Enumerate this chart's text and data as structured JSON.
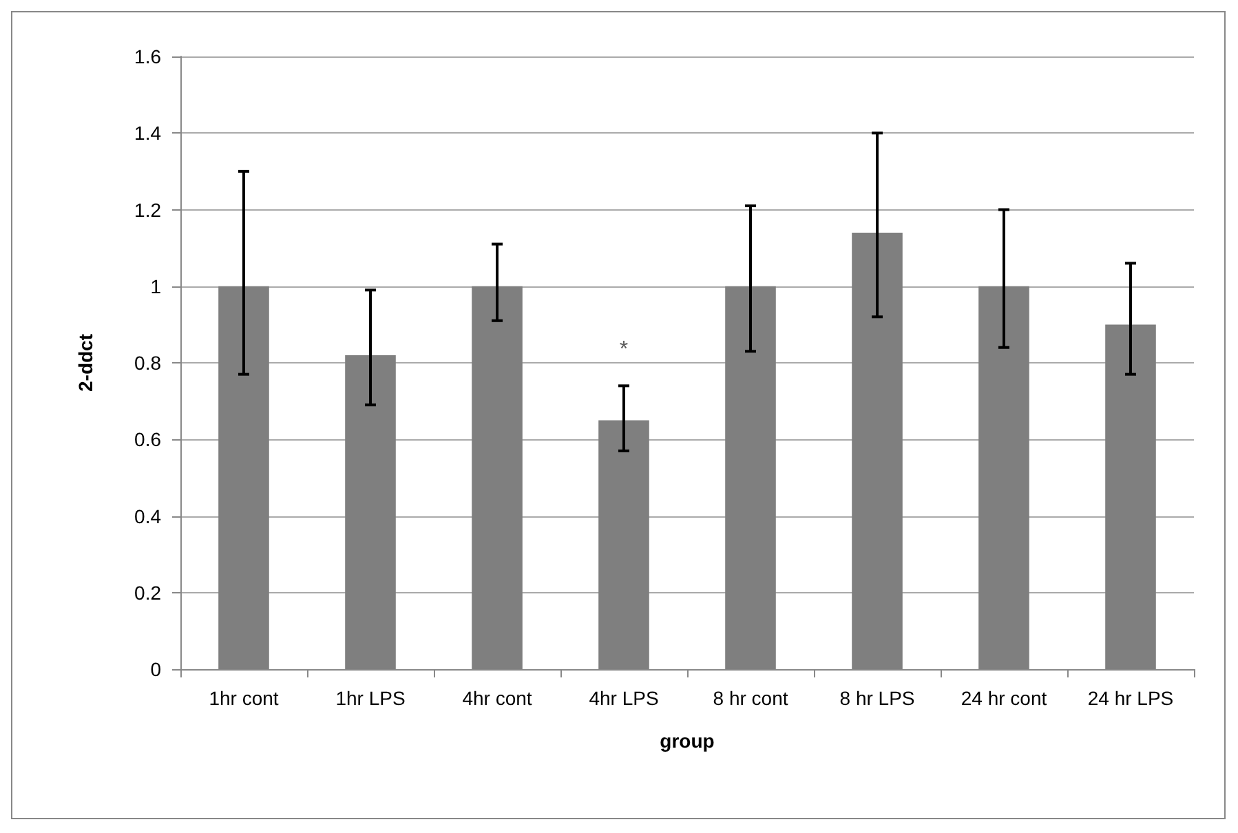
{
  "chart_data": {
    "type": "bar",
    "xlabel": "group",
    "ylabel": "2-ddct",
    "categories": [
      "1hr cont",
      "1hr LPS",
      "4hr cont",
      "4hr LPS",
      "8 hr cont",
      "8 hr LPS",
      "24 hr cont",
      "24 hr LPS"
    ],
    "values": [
      1.0,
      0.82,
      1.0,
      0.65,
      1.0,
      1.14,
      1.0,
      0.9
    ],
    "errors": [
      [
        0.77,
        1.3
      ],
      [
        0.69,
        0.99
      ],
      [
        0.91,
        1.11
      ],
      [
        0.57,
        0.74
      ],
      [
        0.83,
        1.21
      ],
      [
        0.92,
        1.4
      ],
      [
        0.84,
        1.2
      ],
      [
        0.77,
        1.06
      ]
    ],
    "color": "#7f7f7f",
    "ylim": [
      0,
      1.6
    ],
    "yticks": [
      0,
      0.2,
      0.4,
      0.6,
      0.8,
      1,
      1.2,
      1.4,
      1.6
    ],
    "grid": "y",
    "annotations": [
      {
        "text": "*",
        "x": "4hr LPS",
        "y": 0.74
      }
    ]
  }
}
